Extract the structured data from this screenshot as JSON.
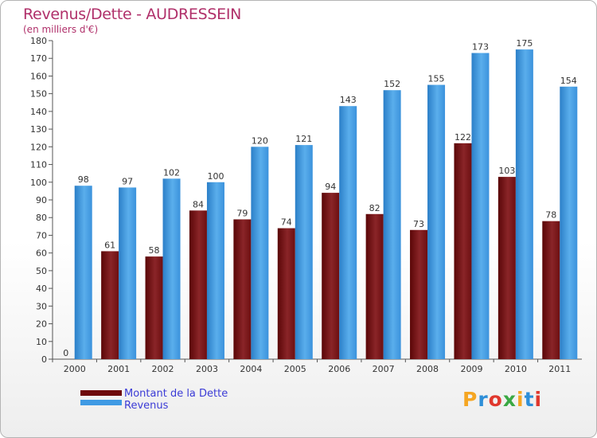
{
  "title": "Revenus/Dette - AUDRESSEIN",
  "subtitle": "(en milliers d'€)",
  "logo": {
    "text": "Proxiti",
    "colors": [
      "#f5a623",
      "#2e8fd8",
      "#e0382e",
      "#3aa843",
      "#f5a623",
      "#2e8fd8",
      "#e0382e"
    ]
  },
  "colors": {
    "dette": "#7b1416",
    "revenus": "#3f9ae4",
    "title": "#b0306a",
    "legend_text": "#3b3bd6"
  },
  "legend": [
    {
      "label": "Montant de la Dette",
      "color": "#6e0a0c"
    },
    {
      "label": "Revenus",
      "color": "#3f9ae4"
    }
  ],
  "chart_data": {
    "type": "bar",
    "title": "Revenus/Dette - AUDRESSEIN",
    "ylabel": "(en milliers d'€)",
    "categories": [
      "2000",
      "2001",
      "2002",
      "2003",
      "2004",
      "2005",
      "2006",
      "2007",
      "2008",
      "2009",
      "2010",
      "2011"
    ],
    "series": [
      {
        "name": "Montant de la Dette",
        "values": [
          0,
          61,
          58,
          84,
          79,
          74,
          94,
          82,
          73,
          122,
          103,
          78
        ]
      },
      {
        "name": "Revenus",
        "values": [
          98,
          97,
          102,
          100,
          120,
          121,
          143,
          152,
          155,
          173,
          175,
          154
        ]
      }
    ],
    "ylim": [
      0,
      180
    ],
    "yticks": [
      0,
      10,
      20,
      30,
      40,
      50,
      60,
      70,
      80,
      90,
      100,
      110,
      120,
      130,
      140,
      150,
      160,
      170,
      180
    ],
    "grid": false,
    "legend_position": "bottom-left"
  }
}
